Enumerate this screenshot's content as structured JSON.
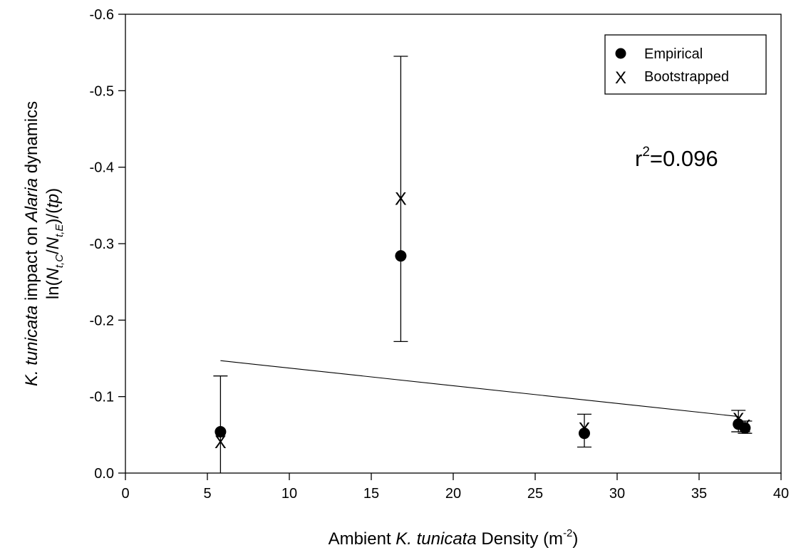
{
  "chart_data": {
    "type": "scatter",
    "title": "",
    "xlabel": {
      "pre": "Ambient ",
      "italic": "K. tunicata",
      "post": " Density (m",
      "sup": "-2",
      "close": ")"
    },
    "ylabel": {
      "line1_italic": "K. tunicata",
      "line1_mid": " impact on ",
      "line1_italic2": "Alaria",
      "line1_post": " dynamics",
      "line2_pre": "ln(",
      "line2_N1": "N",
      "line2_sub1": "t,C",
      "line2_slash": "/",
      "line2_N2": "N",
      "line2_sub2": "t,E",
      "line2_mid": ")/(",
      "line2_tp": "tp",
      "line2_close": ")"
    },
    "xlim": [
      0,
      40
    ],
    "ylim": [
      0.0,
      -0.6
    ],
    "y_inverted": true,
    "xticks": [
      0,
      5,
      10,
      15,
      20,
      25,
      30,
      35,
      40
    ],
    "yticks": [
      0.0,
      -0.1,
      -0.2,
      -0.3,
      -0.4,
      -0.5,
      -0.6
    ],
    "ytick_labels": [
      "0.0",
      "-0.1",
      "-0.2",
      "-0.3",
      "-0.4",
      "-0.5",
      "-0.6"
    ],
    "series": [
      {
        "name": "Empirical",
        "marker": "filled-circle",
        "x": [
          5.8,
          16.8,
          28.0,
          37.4,
          37.8
        ],
        "y": [
          -0.054,
          -0.284,
          -0.052,
          -0.064,
          -0.059
        ]
      },
      {
        "name": "Bootstrapped",
        "marker": "x",
        "x": [
          5.8,
          16.8,
          28.0,
          37.4,
          37.8
        ],
        "y": [
          -0.041,
          -0.359,
          -0.058,
          -0.071,
          -0.062
        ],
        "error_low": [
          0.0,
          -0.172,
          -0.034,
          -0.054,
          -0.052
        ],
        "error_high": [
          -0.127,
          -0.545,
          -0.077,
          -0.082,
          -0.068
        ]
      }
    ],
    "regression_line": {
      "x": [
        5.8,
        37.4
      ],
      "y": [
        -0.147,
        -0.074
      ]
    },
    "annotation": {
      "base": "r",
      "sup": "2",
      "rest": "=0.096"
    },
    "legend_position": "top-right",
    "grid": false
  }
}
